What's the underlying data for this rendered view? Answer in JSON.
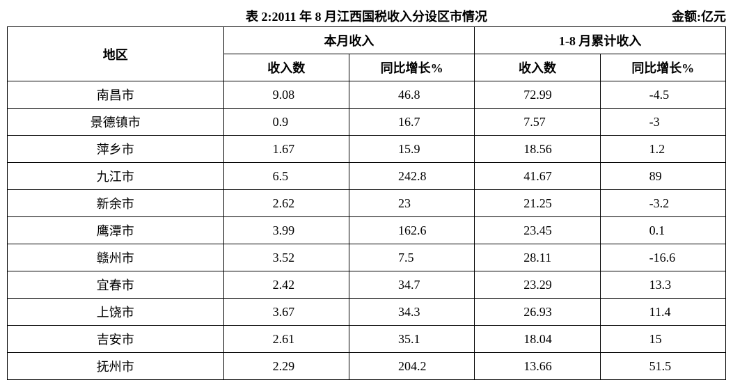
{
  "caption": {
    "title": "表 2:2011 年 8 月江西国税收入分设区市情况",
    "unit": "金额:亿元"
  },
  "table": {
    "type": "table",
    "background_color": "#ffffff",
    "border_color": "#000000",
    "text_color": "#000000",
    "header_fontsize": 18,
    "cell_fontsize": 18,
    "columns": {
      "region": "地区",
      "month_group": "本月收入",
      "cumulative_group": "1-8 月累计收入",
      "amount": "收入数",
      "growth": "同比增长%"
    },
    "rows": [
      {
        "region": "南昌市",
        "month_amount": "9.08",
        "month_growth": "46.8",
        "cum_amount": "72.99",
        "cum_growth": "-4.5"
      },
      {
        "region": "景德镇市",
        "month_amount": "0.9",
        "month_growth": "16.7",
        "cum_amount": "7.57",
        "cum_growth": "-3"
      },
      {
        "region": "萍乡市",
        "month_amount": "1.67",
        "month_growth": "15.9",
        "cum_amount": "18.56",
        "cum_growth": "1.2"
      },
      {
        "region": "九江市",
        "month_amount": "6.5",
        "month_growth": "242.8",
        "cum_amount": "41.67",
        "cum_growth": "89"
      },
      {
        "region": "新余市",
        "month_amount": "2.62",
        "month_growth": "23",
        "cum_amount": "21.25",
        "cum_growth": "-3.2"
      },
      {
        "region": "鹰潭市",
        "month_amount": "3.99",
        "month_growth": "162.6",
        "cum_amount": "23.45",
        "cum_growth": "0.1"
      },
      {
        "region": "赣州市",
        "month_amount": "3.52",
        "month_growth": "7.5",
        "cum_amount": "28.11",
        "cum_growth": "-16.6"
      },
      {
        "region": "宜春市",
        "month_amount": "2.42",
        "month_growth": "34.7",
        "cum_amount": "23.29",
        "cum_growth": "13.3"
      },
      {
        "region": "上饶市",
        "month_amount": "3.67",
        "month_growth": "34.3",
        "cum_amount": "26.93",
        "cum_growth": "11.4"
      },
      {
        "region": "吉安市",
        "month_amount": "2.61",
        "month_growth": "35.1",
        "cum_amount": "18.04",
        "cum_growth": "15"
      },
      {
        "region": "抚州市",
        "month_amount": "2.29",
        "month_growth": "204.2",
        "cum_amount": "13.66",
        "cum_growth": "51.5"
      }
    ]
  }
}
